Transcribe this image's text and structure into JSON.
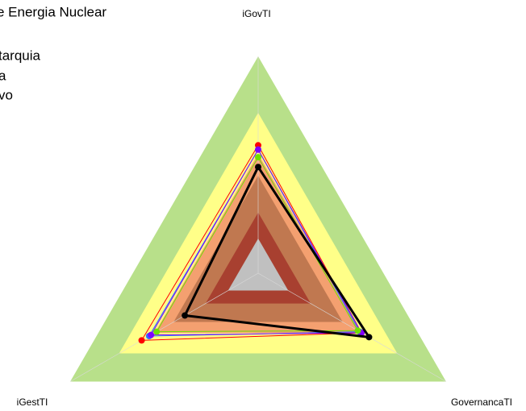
{
  "chart_data": {
    "type": "radar",
    "legend_texts": [
      "e Energia Nuclear",
      "tarquia",
      "a",
      "vo"
    ],
    "categories": [
      "iGovTI",
      "GovernancaTI",
      "iGestTI"
    ],
    "rlim": [
      0,
      1
    ],
    "bands": [
      {
        "value": 1.0,
        "color": "#b8e08a"
      },
      {
        "value": 0.74,
        "color": "#ffff88"
      },
      {
        "value": 0.55,
        "color": "#f4a070"
      },
      {
        "value": 0.45,
        "color": "#c07850"
      },
      {
        "value": 0.28,
        "color": "#a84030"
      },
      {
        "value": 0.16,
        "color": "#c0c0c0"
      }
    ],
    "series": [
      {
        "color": "#ff0000",
        "values": [
          0.59,
          0.55,
          0.62
        ]
      },
      {
        "color": "#3070ff",
        "values": [
          0.57,
          0.54,
          0.58
        ]
      },
      {
        "color": "#8000ff",
        "values": [
          0.57,
          0.55,
          0.57
        ]
      },
      {
        "color": "#70e000",
        "values": [
          0.535,
          0.53,
          0.54
        ]
      },
      {
        "color": "#000000",
        "values": [
          0.49,
          0.59,
          0.39
        ]
      }
    ]
  }
}
